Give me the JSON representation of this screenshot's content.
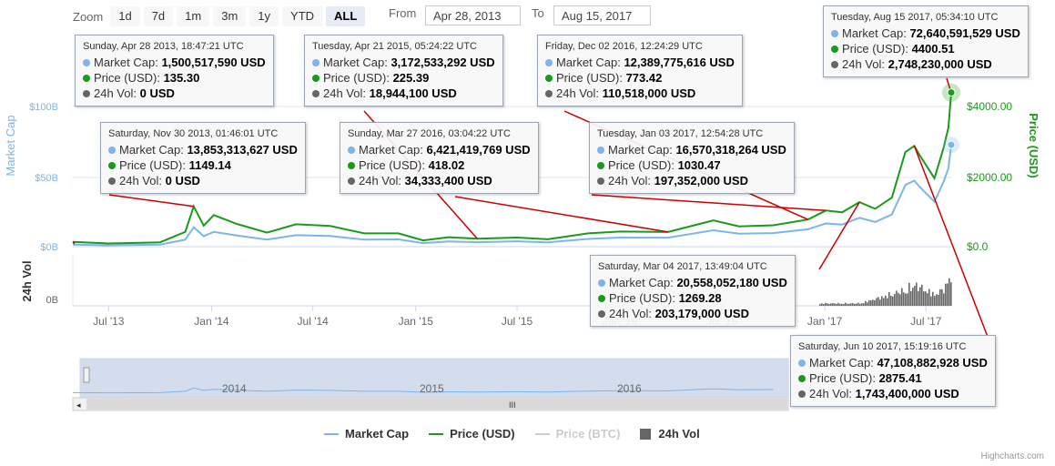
{
  "zoom": {
    "label": "Zoom",
    "buttons": [
      "1d",
      "7d",
      "1m",
      "3m",
      "1y",
      "YTD",
      "ALL"
    ],
    "active": "ALL"
  },
  "range": {
    "from_label": "From",
    "from_value": "Apr 28, 2013",
    "to_label": "To",
    "to_value": "Aug 15, 2017"
  },
  "colors": {
    "market_cap": "#7cb5ec",
    "price_usd": "#1a9a1a",
    "price_btc": "#cccccc",
    "volume": "#666666",
    "connector": "#cc0000"
  },
  "chart_data": {
    "type": "line",
    "title": "",
    "x_tick_labels": [
      "Jul '13",
      "Jan '14",
      "Jul '14",
      "Jan '15",
      "Jul '15",
      "Jan '16",
      "Jul '16",
      "Jan '17",
      "Jul '17"
    ],
    "left_axis": {
      "title": "Market Cap",
      "ticks": [
        "$0B",
        "$50B",
        "$100B"
      ],
      "range": [
        0,
        120
      ]
    },
    "right_axis": {
      "title": "Price (USD)",
      "ticks": [
        "$0.0",
        "$2000.00",
        "$4000.00"
      ],
      "range": [
        0,
        4400
      ]
    },
    "volume_axis": {
      "title": "24h Vol",
      "ticks": [
        "0B"
      ]
    },
    "navigator_labels": [
      "2014",
      "2015",
      "2016"
    ],
    "grid": true,
    "legend_position": "bottom",
    "series": [
      {
        "name": "Market Cap",
        "unit": "USD billions"
      },
      {
        "name": "Price (USD)",
        "unit": "USD"
      },
      {
        "name": "Price (BTC)",
        "visible": false
      },
      {
        "name": "24h Vol",
        "unit": "USD"
      }
    ],
    "price_usd_points": [
      [
        "2013-04-28",
        135
      ],
      [
        "2013-07-01",
        90
      ],
      [
        "2013-10-01",
        125
      ],
      [
        "2013-11-15",
        420
      ],
      [
        "2013-11-30",
        1149
      ],
      [
        "2013-12-18",
        600
      ],
      [
        "2014-01-05",
        900
      ],
      [
        "2014-02-15",
        650
      ],
      [
        "2014-04-10",
        400
      ],
      [
        "2014-06-01",
        640
      ],
      [
        "2014-08-01",
        590
      ],
      [
        "2014-10-01",
        380
      ],
      [
        "2014-12-01",
        380
      ],
      [
        "2015-01-14",
        180
      ],
      [
        "2015-03-01",
        270
      ],
      [
        "2015-04-21",
        225
      ],
      [
        "2015-07-01",
        260
      ],
      [
        "2015-08-25",
        210
      ],
      [
        "2015-11-05",
        380
      ],
      [
        "2016-01-01",
        430
      ],
      [
        "2016-03-27",
        418
      ],
      [
        "2016-06-16",
        750
      ],
      [
        "2016-08-01",
        580
      ],
      [
        "2016-10-01",
        610
      ],
      [
        "2016-12-02",
        773
      ],
      [
        "2017-01-03",
        1030
      ],
      [
        "2017-02-01",
        980
      ],
      [
        "2017-03-04",
        1269
      ],
      [
        "2017-04-01",
        1080
      ],
      [
        "2017-05-01",
        1400
      ],
      [
        "2017-05-25",
        2700
      ],
      [
        "2017-06-10",
        2875
      ],
      [
        "2017-06-20",
        2600
      ],
      [
        "2017-07-16",
        1950
      ],
      [
        "2017-08-01",
        2800
      ],
      [
        "2017-08-10",
        3400
      ],
      [
        "2017-08-15",
        4400
      ]
    ],
    "market_cap_points": [
      [
        "2013-04-28",
        1.5
      ],
      [
        "2013-07-01",
        1.0
      ],
      [
        "2013-10-01",
        1.5
      ],
      [
        "2013-11-15",
        5.0
      ],
      [
        "2013-11-30",
        13.85
      ],
      [
        "2013-12-18",
        7.5
      ],
      [
        "2014-01-05",
        10.5
      ],
      [
        "2014-02-15",
        8.0
      ],
      [
        "2014-04-10",
        5.0
      ],
      [
        "2014-06-01",
        8.2
      ],
      [
        "2014-08-01",
        7.6
      ],
      [
        "2014-10-01",
        5.0
      ],
      [
        "2014-12-01",
        5.2
      ],
      [
        "2015-01-14",
        2.5
      ],
      [
        "2015-03-01",
        3.7
      ],
      [
        "2015-04-21",
        3.17
      ],
      [
        "2015-07-01",
        3.8
      ],
      [
        "2015-08-25",
        3.1
      ],
      [
        "2015-11-05",
        5.5
      ],
      [
        "2016-01-01",
        6.5
      ],
      [
        "2016-03-27",
        6.42
      ],
      [
        "2016-06-16",
        11.7
      ],
      [
        "2016-08-01",
        9.2
      ],
      [
        "2016-10-01",
        9.7
      ],
      [
        "2016-12-02",
        12.39
      ],
      [
        "2017-01-03",
        16.57
      ],
      [
        "2017-02-01",
        15.8
      ],
      [
        "2017-03-04",
        20.56
      ],
      [
        "2017-04-01",
        17.6
      ],
      [
        "2017-05-01",
        23.0
      ],
      [
        "2017-05-25",
        44.0
      ],
      [
        "2017-06-10",
        47.11
      ],
      [
        "2017-06-20",
        42.5
      ],
      [
        "2017-07-16",
        32.0
      ],
      [
        "2017-08-01",
        46.0
      ],
      [
        "2017-08-10",
        56.0
      ],
      [
        "2017-08-15",
        72.64
      ]
    ],
    "volume_points": [
      [
        "2013-04-28",
        0
      ],
      [
        "2013-12-01",
        0
      ],
      [
        "2014-06-01",
        0.02
      ],
      [
        "2015-06-01",
        0.02
      ],
      [
        "2016-06-01",
        0.1
      ],
      [
        "2017-01-03",
        0.2
      ],
      [
        "2017-03-04",
        0.2
      ],
      [
        "2017-05-25",
        1.3
      ],
      [
        "2017-06-10",
        1.74
      ],
      [
        "2017-07-16",
        0.9
      ],
      [
        "2017-08-01",
        1.4
      ],
      [
        "2017-08-15",
        2.75
      ]
    ]
  },
  "tooltips": [
    {
      "date": "Sunday, Apr 28 2013, 18:47:21 UTC",
      "point": "2013-04-28",
      "market_cap": "1,500,517,590 USD",
      "price": "135.30",
      "vol": "0 USD"
    },
    {
      "date": "Saturday, Nov 30 2013, 01:46:01 UTC",
      "point": "2013-11-30",
      "market_cap": "13,853,313,627 USD",
      "price": "1149.14",
      "vol": "0 USD"
    },
    {
      "date": "Tuesday, Apr 21 2015, 05:24:22 UTC",
      "point": "2015-04-21",
      "market_cap": "3,172,533,292 USD",
      "price": "225.39",
      "vol": "18,944,100 USD"
    },
    {
      "date": "Sunday, Mar 27 2016, 03:04:22 UTC",
      "point": "2016-03-27",
      "market_cap": "6,421,419,769 USD",
      "price": "418.02",
      "vol": "34,333,400 USD"
    },
    {
      "date": "Friday, Dec 02 2016, 12:24:29 UTC",
      "point": "2016-12-02",
      "market_cap": "12,389,775,616 USD",
      "price": "773.42",
      "vol": "110,518,000 USD"
    },
    {
      "date": "Tuesday, Jan 03 2017, 12:54:28 UTC",
      "point": "2017-01-03",
      "market_cap": "16,570,318,264 USD",
      "price": "1030.47",
      "vol": "197,352,000 USD"
    },
    {
      "date": "Saturday, Mar 04 2017, 13:49:04 UTC",
      "point": "2017-03-04",
      "market_cap": "20,558,052,180 USD",
      "price": "1269.28",
      "vol": "203,179,000 USD"
    },
    {
      "date": "Saturday, Jun 10 2017, 15:19:16 UTC",
      "point": "2017-06-10",
      "market_cap": "47,108,882,928 USD",
      "price": "2875.41",
      "vol": "1,743,400,000 USD"
    },
    {
      "date": "Tuesday, Aug 15 2017, 05:34:10 UTC",
      "point": "2017-08-15",
      "market_cap": "72,640,591,529 USD",
      "price": "4400.51",
      "vol": "2,748,230,000 USD"
    }
  ],
  "tooltip_labels": {
    "market_cap": "Market Cap:",
    "price": "Price (USD):",
    "vol": "24h Vol:"
  },
  "legend": [
    {
      "label": "Market Cap",
      "kind": "line",
      "color": "#7cb5ec",
      "dim": false
    },
    {
      "label": "Price (USD)",
      "kind": "line",
      "color": "#1a9a1a",
      "dim": false
    },
    {
      "label": "Price (BTC)",
      "kind": "line",
      "color": "#cccccc",
      "dim": true
    },
    {
      "label": "24h Vol",
      "kind": "square",
      "color": "#666666",
      "dim": false
    }
  ],
  "credit": "Highcharts.com"
}
